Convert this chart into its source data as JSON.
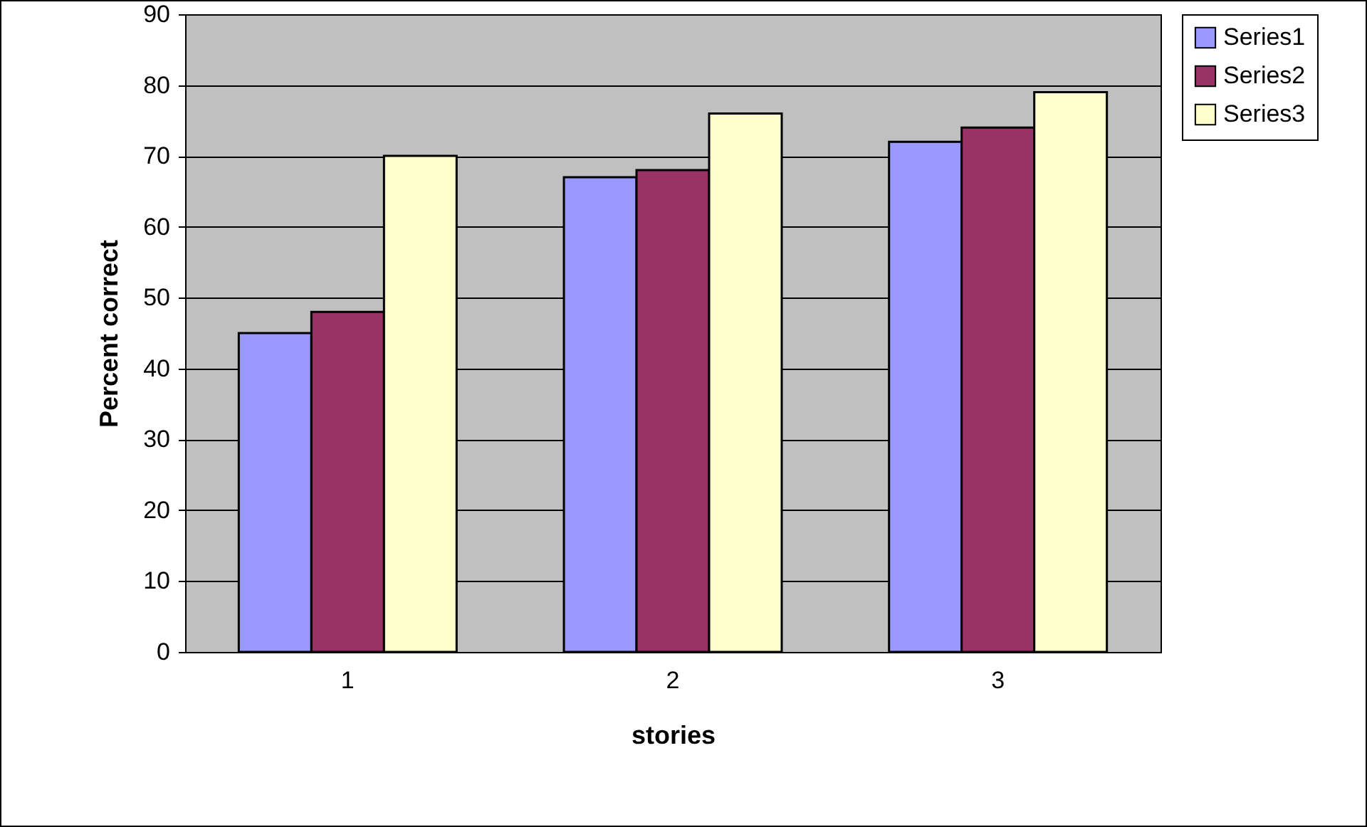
{
  "chart_data": {
    "type": "bar",
    "xlabel": "stories",
    "ylabel": "Percent correct",
    "categories": [
      "1",
      "2",
      "3"
    ],
    "series": [
      {
        "name": "Series1",
        "color": "#9999ff",
        "values": [
          45,
          67,
          72
        ]
      },
      {
        "name": "Series2",
        "color": "#993366",
        "values": [
          48,
          68,
          74
        ]
      },
      {
        "name": "Series3",
        "color": "#ffffcc",
        "values": [
          70,
          76,
          79
        ]
      }
    ],
    "ylim": [
      0,
      90
    ],
    "yticks": [
      0,
      10,
      20,
      30,
      40,
      50,
      60,
      70,
      80,
      90
    ],
    "grid": "y",
    "legend": "right"
  }
}
